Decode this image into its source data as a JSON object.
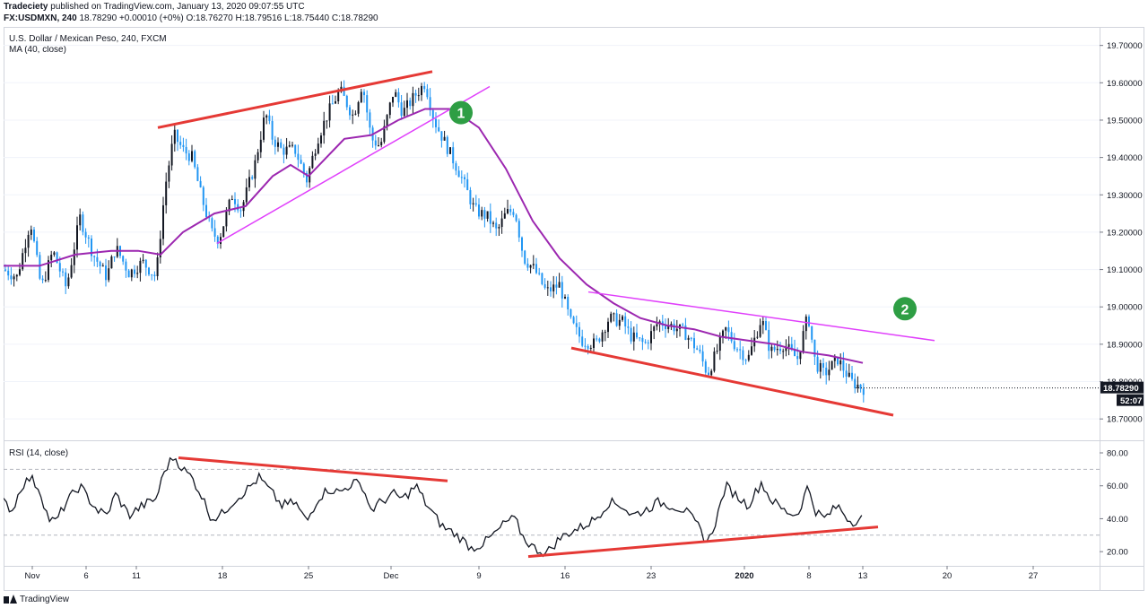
{
  "header": {
    "publisher": "Tradeciety",
    "published_text": "published on TradingView.com, January 13, 2020 09:07:55 UTC",
    "symbol": "FX:USDMXN, 240",
    "last": "18.78290",
    "change": "+0.00010 (+0%)",
    "o_label": "O:",
    "o_value": "18.76270",
    "h_label": "H:",
    "h_value": "18.79516",
    "l_label": "L:",
    "l_value": "18.75440",
    "c_label": "C:",
    "c_value": "18.78290"
  },
  "footer": {
    "brand": "TradingView"
  },
  "chart_data": [
    {
      "type": "candlestick",
      "title": "U.S. Dollar / Mexican Peso, 240, FXCM",
      "indicator_label": "MA (40, close)",
      "ylim": [
        18.65,
        19.74
      ],
      "y_ticks": [
        "19.70000",
        "19.60000",
        "19.50000",
        "19.40000",
        "19.30000",
        "19.20000",
        "19.10000",
        "19.00000",
        "18.90000",
        "18.80000",
        "18.70000"
      ],
      "y_tick_values": [
        19.7,
        19.6,
        19.5,
        19.4,
        19.3,
        19.2,
        19.1,
        19.0,
        18.9,
        18.8,
        18.7
      ],
      "last_price": 18.7829,
      "last_price_label": "18.78290",
      "countdown": "52:07",
      "price_path": [
        [
          0,
          19.1
        ],
        [
          15,
          19.08
        ],
        [
          30,
          19.23
        ],
        [
          42,
          19.05
        ],
        [
          55,
          19.15
        ],
        [
          70,
          19.05
        ],
        [
          85,
          19.24
        ],
        [
          100,
          19.14
        ],
        [
          115,
          19.08
        ],
        [
          125,
          19.16
        ],
        [
          140,
          19.09
        ],
        [
          155,
          19.12
        ],
        [
          170,
          19.08
        ],
        [
          180,
          19.32
        ],
        [
          190,
          19.46
        ],
        [
          200,
          19.42
        ],
        [
          210,
          19.4
        ],
        [
          220,
          19.3
        ],
        [
          232,
          19.2
        ],
        [
          240,
          19.18
        ],
        [
          255,
          19.3
        ],
        [
          265,
          19.26
        ],
        [
          280,
          19.38
        ],
        [
          292,
          19.52
        ],
        [
          300,
          19.45
        ],
        [
          310,
          19.42
        ],
        [
          325,
          19.42
        ],
        [
          338,
          19.34
        ],
        [
          350,
          19.45
        ],
        [
          362,
          19.52
        ],
        [
          375,
          19.58
        ],
        [
          390,
          19.51
        ],
        [
          400,
          19.6
        ],
        [
          410,
          19.45
        ],
        [
          420,
          19.43
        ],
        [
          435,
          19.58
        ],
        [
          445,
          19.52
        ],
        [
          460,
          19.57
        ],
        [
          470,
          19.6
        ],
        [
          480,
          19.5
        ],
        [
          490,
          19.45
        ],
        [
          500,
          19.4
        ],
        [
          510,
          19.35
        ],
        [
          525,
          19.26
        ],
        [
          540,
          19.24
        ],
        [
          550,
          19.2
        ],
        [
          560,
          19.25
        ],
        [
          570,
          19.26
        ],
        [
          580,
          19.13
        ],
        [
          592,
          19.1
        ],
        [
          605,
          19.04
        ],
        [
          620,
          19.06
        ],
        [
          632,
          18.96
        ],
        [
          645,
          18.91
        ],
        [
          660,
          18.9
        ],
        [
          675,
          18.97
        ],
        [
          690,
          18.96
        ],
        [
          700,
          18.92
        ],
        [
          715,
          18.9
        ],
        [
          730,
          18.96
        ],
        [
          745,
          18.95
        ],
        [
          760,
          18.93
        ],
        [
          775,
          18.88
        ],
        [
          785,
          18.82
        ],
        [
          795,
          18.88
        ],
        [
          805,
          18.94
        ],
        [
          815,
          18.9
        ],
        [
          830,
          18.86
        ],
        [
          845,
          18.97
        ],
        [
          855,
          18.88
        ],
        [
          870,
          18.9
        ],
        [
          885,
          18.86
        ],
        [
          897,
          18.98
        ],
        [
          905,
          18.85
        ],
        [
          915,
          18.82
        ],
        [
          930,
          18.86
        ],
        [
          945,
          18.8
        ],
        [
          960,
          18.78
        ]
      ],
      "ma_path": [
        [
          0,
          19.11
        ],
        [
          40,
          19.11
        ],
        [
          80,
          19.14
        ],
        [
          120,
          19.15
        ],
        [
          150,
          19.15
        ],
        [
          175,
          19.14
        ],
        [
          200,
          19.2
        ],
        [
          235,
          19.25
        ],
        [
          270,
          19.27
        ],
        [
          300,
          19.35
        ],
        [
          320,
          19.38
        ],
        [
          340,
          19.35
        ],
        [
          360,
          19.4
        ],
        [
          380,
          19.45
        ],
        [
          410,
          19.46
        ],
        [
          440,
          19.5
        ],
        [
          470,
          19.53
        ],
        [
          500,
          19.53
        ],
        [
          530,
          19.48
        ],
        [
          560,
          19.37
        ],
        [
          590,
          19.23
        ],
        [
          620,
          19.13
        ],
        [
          650,
          19.06
        ],
        [
          680,
          19.01
        ],
        [
          710,
          18.97
        ],
        [
          740,
          18.95
        ],
        [
          770,
          18.94
        ],
        [
          800,
          18.92
        ],
        [
          830,
          18.91
        ],
        [
          860,
          18.9
        ],
        [
          890,
          18.88
        ],
        [
          920,
          18.87
        ],
        [
          958,
          18.85
        ]
      ],
      "trendlines": [
        {
          "color": "#e53935",
          "from": [
            172,
            19.48
          ],
          "to": [
            478,
            19.63
          ]
        },
        {
          "color": "#e040fb",
          "from": [
            238,
            19.17
          ],
          "to": [
            542,
            19.59
          ]
        },
        {
          "color": "#e040fb",
          "from": [
            652,
            19.04
          ],
          "to": [
            1038,
            18.91
          ]
        },
        {
          "color": "#e53935",
          "from": [
            633,
            18.89
          ],
          "to": [
            992,
            18.71
          ]
        }
      ],
      "markers": [
        {
          "label": "1",
          "x": 510,
          "y": 19.52
        },
        {
          "label": "2",
          "x": 1005,
          "y": 18.995
        }
      ],
      "colors": {
        "up": "#131722",
        "down": "#2196f3",
        "ma": "#9c27b0"
      }
    },
    {
      "type": "line",
      "title": "RSI (14, close)",
      "ylim": [
        13,
        86
      ],
      "y_ticks": [
        "80.00",
        "60.00",
        "40.00",
        "20.00"
      ],
      "y_tick_values": [
        80,
        60,
        40,
        20
      ],
      "bands": [
        70,
        30
      ],
      "rsi_path": [
        [
          0,
          50
        ],
        [
          10,
          45
        ],
        [
          20,
          60
        ],
        [
          30,
          65
        ],
        [
          40,
          58
        ],
        [
          50,
          40
        ],
        [
          58,
          38
        ],
        [
          70,
          50
        ],
        [
          85,
          60
        ],
        [
          95,
          52
        ],
        [
          105,
          45
        ],
        [
          115,
          42
        ],
        [
          125,
          55
        ],
        [
          140,
          42
        ],
        [
          155,
          48
        ],
        [
          170,
          52
        ],
        [
          180,
          70
        ],
        [
          190,
          78
        ],
        [
          200,
          70
        ],
        [
          210,
          65
        ],
        [
          220,
          55
        ],
        [
          232,
          40
        ],
        [
          242,
          42
        ],
        [
          255,
          50
        ],
        [
          270,
          57
        ],
        [
          285,
          65
        ],
        [
          300,
          55
        ],
        [
          310,
          48
        ],
        [
          325,
          50
        ],
        [
          338,
          38
        ],
        [
          350,
          52
        ],
        [
          362,
          58
        ],
        [
          375,
          56
        ],
        [
          390,
          62
        ],
        [
          400,
          60
        ],
        [
          410,
          45
        ],
        [
          420,
          50
        ],
        [
          435,
          55
        ],
        [
          445,
          52
        ],
        [
          460,
          60
        ],
        [
          470,
          50
        ],
        [
          480,
          42
        ],
        [
          490,
          35
        ],
        [
          500,
          32
        ],
        [
          510,
          28
        ],
        [
          522,
          22
        ],
        [
          535,
          25
        ],
        [
          550,
          32
        ],
        [
          560,
          38
        ],
        [
          570,
          40
        ],
        [
          580,
          28
        ],
        [
          592,
          22
        ],
        [
          605,
          19
        ],
        [
          620,
          28
        ],
        [
          632,
          32
        ],
        [
          645,
          35
        ],
        [
          660,
          40
        ],
        [
          675,
          50
        ],
        [
          690,
          48
        ],
        [
          700,
          42
        ],
        [
          715,
          45
        ],
        [
          730,
          50
        ],
        [
          745,
          48
        ],
        [
          760,
          45
        ],
        [
          775,
          35
        ],
        [
          785,
          25
        ],
        [
          795,
          40
        ],
        [
          805,
          60
        ],
        [
          815,
          55
        ],
        [
          830,
          48
        ],
        [
          845,
          62
        ],
        [
          855,
          52
        ],
        [
          870,
          45
        ],
        [
          885,
          42
        ],
        [
          897,
          60
        ],
        [
          905,
          45
        ],
        [
          915,
          40
        ],
        [
          930,
          48
        ],
        [
          945,
          38
        ],
        [
          960,
          41
        ]
      ],
      "trendlines": [
        {
          "color": "#e53935",
          "from": [
            195,
            77
          ],
          "to": [
            495,
            63
          ]
        },
        {
          "color": "#e53935",
          "from": [
            585,
            17
          ],
          "to": [
            975,
            35
          ]
        }
      ],
      "colors": {
        "line": "#131722"
      }
    }
  ],
  "x_axis": {
    "labels": [
      {
        "text": "Nov",
        "x": 32
      },
      {
        "text": "6",
        "x": 92
      },
      {
        "text": "11",
        "x": 148
      },
      {
        "text": "18",
        "x": 244
      },
      {
        "text": "25",
        "x": 340
      },
      {
        "text": "Dec",
        "x": 432
      },
      {
        "text": "9",
        "x": 530
      },
      {
        "text": "16",
        "x": 626
      },
      {
        "text": "23",
        "x": 722
      },
      {
        "text": "2020",
        "x": 826,
        "bold": true
      },
      {
        "text": "8",
        "x": 898
      },
      {
        "text": "13",
        "x": 958
      },
      {
        "text": "20",
        "x": 1052
      },
      {
        "text": "27",
        "x": 1148
      }
    ]
  }
}
